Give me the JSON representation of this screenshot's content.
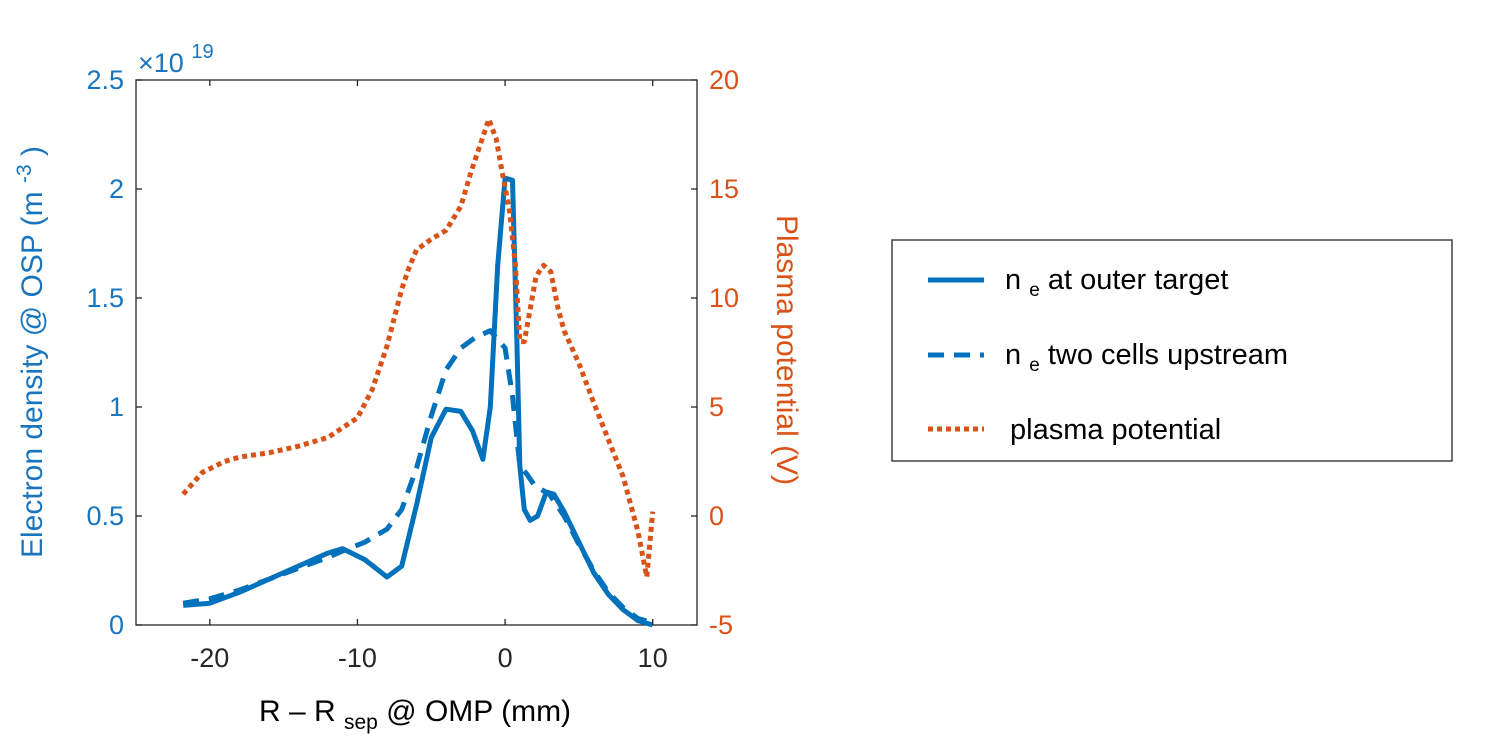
{
  "chart_data": {
    "type": "line",
    "xlabel": "R – R_sep @ OMP (mm)",
    "xlabel_parts": {
      "main": "R – R",
      "sub": "sep",
      "rest": " @ OMP (mm)"
    },
    "ylabel_left": "Electron density @ OSP (m^-3)",
    "ylabel_left_parts": {
      "main": "Electron density @ OSP (m",
      "sup": "-3",
      "rest": ")"
    },
    "ylabel_right": "Plasma potential (V)",
    "left_axis_exponent": {
      "base": "×10",
      "power": "19"
    },
    "xlim": [
      -25,
      13
    ],
    "ylim_left": [
      0,
      2.5
    ],
    "ylim_right": [
      -5,
      20
    ],
    "x_ticks": [
      -20,
      -10,
      0,
      10
    ],
    "x_tick_labels": [
      "-20",
      "-10",
      "0",
      "10"
    ],
    "y_left_ticks": [
      0,
      0.5,
      1,
      1.5,
      2,
      2.5
    ],
    "y_left_tick_labels": [
      "0",
      "0.5",
      "1",
      "1.5",
      "2",
      "2.5"
    ],
    "y_right_ticks": [
      -5,
      0,
      5,
      10,
      15,
      20
    ],
    "y_right_tick_labels": [
      "-5",
      "0",
      "5",
      "10",
      "15",
      "20"
    ],
    "colors": {
      "density": "#0072bd",
      "potential": "#d95319",
      "left_axis": "#1a75bf",
      "right_axis": "#d95319"
    },
    "series": [
      {
        "name": "ne at outer target",
        "axis": "left",
        "style": "solid",
        "x": [
          -21.8,
          -20,
          -18,
          -16,
          -14,
          -12,
          -11,
          -9.5,
          -8,
          -7,
          -6,
          -5,
          -4,
          -3,
          -2.2,
          -1.5,
          -1,
          -0.5,
          0,
          0.5,
          0.8,
          1,
          1.3,
          1.7,
          2.2,
          2.8,
          3.3,
          4,
          5,
          6,
          7,
          8,
          9,
          10
        ],
        "values": [
          0.09,
          0.1,
          0.15,
          0.21,
          0.27,
          0.33,
          0.35,
          0.3,
          0.22,
          0.27,
          0.55,
          0.86,
          0.99,
          0.98,
          0.89,
          0.76,
          1.0,
          1.65,
          2.05,
          2.04,
          1.3,
          0.73,
          0.53,
          0.48,
          0.5,
          0.61,
          0.6,
          0.52,
          0.38,
          0.24,
          0.14,
          0.07,
          0.02,
          0.0
        ]
      },
      {
        "name": "ne two cells upstream",
        "axis": "left",
        "style": "dashed",
        "x": [
          -21.8,
          -20,
          -18,
          -16,
          -14,
          -12,
          -11,
          -9.5,
          -8,
          -7,
          -6,
          -5,
          -4,
          -3,
          -2,
          -1,
          0,
          0.5,
          1,
          1.5,
          2,
          3,
          4,
          5,
          6,
          7,
          8,
          9,
          10
        ],
        "values": [
          0.1,
          0.12,
          0.16,
          0.21,
          0.26,
          0.31,
          0.34,
          0.38,
          0.44,
          0.53,
          0.72,
          0.96,
          1.17,
          1.27,
          1.32,
          1.35,
          1.27,
          1.05,
          0.73,
          0.69,
          0.64,
          0.6,
          0.5,
          0.37,
          0.25,
          0.15,
          0.08,
          0.03,
          0.01
        ]
      },
      {
        "name": "plasma potential",
        "axis": "right",
        "style": "dotted",
        "x": [
          -21.8,
          -20.5,
          -19,
          -18,
          -16,
          -14,
          -12,
          -10,
          -9,
          -8,
          -7,
          -6.5,
          -6,
          -5,
          -4,
          -3,
          -2.3,
          -1.6,
          -1.1,
          -0.6,
          -0.2,
          0.3,
          0.7,
          1,
          1.3,
          1.7,
          2.1,
          2.6,
          3.1,
          3.6,
          4,
          5,
          6,
          7,
          8,
          9,
          9.6,
          10
        ],
        "values": [
          1,
          2,
          2.5,
          2.7,
          2.9,
          3.2,
          3.6,
          4.5,
          5.8,
          7.8,
          10.4,
          11.4,
          12.2,
          12.7,
          13.1,
          14.2,
          15.8,
          17.2,
          18.2,
          17.3,
          15.8,
          14.0,
          11.5,
          8.0,
          8.0,
          9.5,
          11.0,
          11.5,
          11.2,
          9.5,
          8.5,
          7.0,
          5.2,
          3.5,
          1.8,
          -0.7,
          -2.8,
          0.2
        ]
      }
    ],
    "legend": {
      "position": "right",
      "entries": [
        {
          "label_main": "n",
          "label_sub": "e",
          "label_rest": " at outer target",
          "style": "solid"
        },
        {
          "label_main": "n",
          "label_sub": "e",
          "label_rest": " two cells upstream",
          "style": "dashed"
        },
        {
          "label_main": "plasma potential",
          "label_sub": "",
          "label_rest": "",
          "style": "dotted"
        }
      ]
    }
  }
}
